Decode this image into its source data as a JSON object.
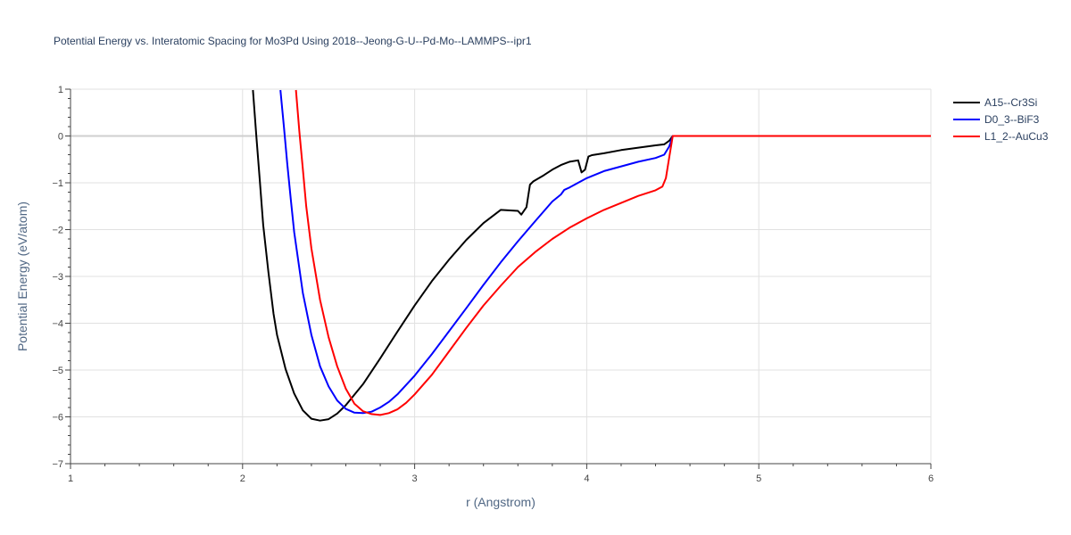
{
  "chart_data": {
    "type": "line",
    "title": "Potential Energy vs. Interatomic Spacing for Mo3Pd Using 2018--Jeong-G-U--Pd-Mo--LAMMPS--ipr1",
    "xlabel": "r (Angstrom)",
    "ylabel": "Potential Energy (eV/atom)",
    "xlim": [
      1,
      6
    ],
    "ylim": [
      -7,
      1
    ],
    "xticks": [
      1,
      2,
      3,
      4,
      5,
      6
    ],
    "yticks": [
      1,
      0,
      -1,
      -2,
      -3,
      -4,
      -5,
      -6,
      -7
    ],
    "ytick_labels": [
      "1",
      "0",
      "−1",
      "−2",
      "−3",
      "−4",
      "−5",
      "−6",
      "−7"
    ],
    "grid": true,
    "legend_position": "top-right",
    "series": [
      {
        "name": "A15--Cr3Si",
        "color": "#000000",
        "x": [
          2.06,
          2.08,
          2.1,
          2.12,
          2.15,
          2.18,
          2.2,
          2.25,
          2.3,
          2.35,
          2.4,
          2.45,
          2.5,
          2.55,
          2.6,
          2.7,
          2.8,
          2.9,
          3.0,
          3.1,
          3.2,
          3.3,
          3.4,
          3.5,
          3.6,
          3.62,
          3.65,
          3.67,
          3.69,
          3.75,
          3.8,
          3.85,
          3.9,
          3.95,
          3.97,
          3.99,
          4.01,
          4.03,
          4.1,
          4.2,
          4.3,
          4.4,
          4.45,
          4.48,
          4.5,
          4.6,
          5.0,
          5.5,
          6.0
        ],
        "y": [
          0.98,
          0.0,
          -0.95,
          -1.9,
          -2.9,
          -3.8,
          -4.25,
          -4.98,
          -5.5,
          -5.86,
          -6.04,
          -6.08,
          -6.05,
          -5.93,
          -5.75,
          -5.3,
          -4.75,
          -4.18,
          -3.62,
          -3.1,
          -2.64,
          -2.22,
          -1.86,
          -1.58,
          -1.6,
          -1.68,
          -1.52,
          -1.04,
          -0.97,
          -0.84,
          -0.72,
          -0.62,
          -0.55,
          -0.52,
          -0.78,
          -0.72,
          -0.44,
          -0.41,
          -0.37,
          -0.3,
          -0.25,
          -0.2,
          -0.18,
          -0.1,
          0.0,
          0.0,
          0.0,
          0.0,
          0.0
        ]
      },
      {
        "name": "D0_3--BiF3",
        "color": "#0000ff",
        "x": [
          2.22,
          2.24,
          2.26,
          2.28,
          2.3,
          2.35,
          2.4,
          2.45,
          2.5,
          2.55,
          2.6,
          2.65,
          2.7,
          2.75,
          2.8,
          2.85,
          2.9,
          3.0,
          3.1,
          3.2,
          3.3,
          3.4,
          3.5,
          3.6,
          3.7,
          3.8,
          3.85,
          3.87,
          3.9,
          4.0,
          4.1,
          4.2,
          4.3,
          4.4,
          4.45,
          4.48,
          4.5,
          4.6,
          5.0,
          5.5,
          6.0
        ],
        "y": [
          0.98,
          0.2,
          -0.6,
          -1.35,
          -2.05,
          -3.35,
          -4.25,
          -4.92,
          -5.35,
          -5.65,
          -5.83,
          -5.91,
          -5.92,
          -5.89,
          -5.8,
          -5.68,
          -5.52,
          -5.12,
          -4.66,
          -4.17,
          -3.68,
          -3.18,
          -2.7,
          -2.25,
          -1.82,
          -1.4,
          -1.25,
          -1.15,
          -1.1,
          -0.9,
          -0.75,
          -0.65,
          -0.55,
          -0.47,
          -0.4,
          -0.22,
          0.0,
          0.0,
          0.0,
          0.0,
          0.0
        ]
      },
      {
        "name": "L1_2--AuCu3",
        "color": "#ff0000",
        "x": [
          2.31,
          2.33,
          2.35,
          2.37,
          2.4,
          2.45,
          2.5,
          2.55,
          2.6,
          2.65,
          2.7,
          2.75,
          2.8,
          2.85,
          2.9,
          2.95,
          3.0,
          3.1,
          3.2,
          3.3,
          3.4,
          3.5,
          3.6,
          3.7,
          3.8,
          3.9,
          4.0,
          4.1,
          4.2,
          4.3,
          4.4,
          4.44,
          4.46,
          4.48,
          4.5,
          4.6,
          5.0,
          5.5,
          6.0
        ],
        "y": [
          0.98,
          0.1,
          -0.7,
          -1.5,
          -2.4,
          -3.5,
          -4.3,
          -4.92,
          -5.4,
          -5.72,
          -5.88,
          -5.94,
          -5.96,
          -5.92,
          -5.84,
          -5.7,
          -5.52,
          -5.1,
          -4.6,
          -4.1,
          -3.62,
          -3.2,
          -2.8,
          -2.48,
          -2.2,
          -1.96,
          -1.76,
          -1.58,
          -1.43,
          -1.28,
          -1.16,
          -1.08,
          -0.9,
          -0.45,
          0.0,
          0.0,
          0.0,
          0.0,
          0.0
        ]
      }
    ]
  }
}
